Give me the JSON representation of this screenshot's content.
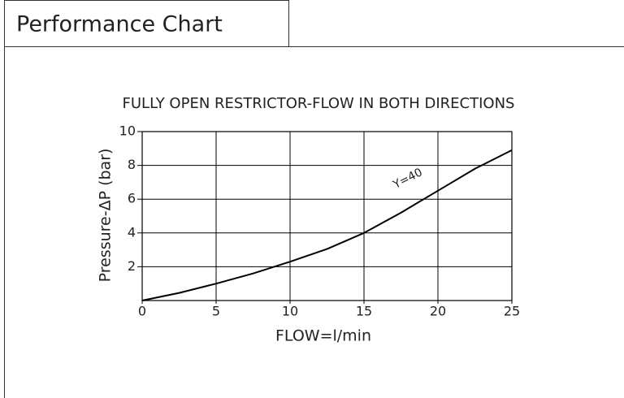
{
  "header": {
    "title": "Performance Chart"
  },
  "chart_data": {
    "type": "line",
    "title": "FULLY OPEN RESTRICTOR-FLOW IN BOTH DIRECTIONS",
    "x_label": "FLOW=l/min",
    "y_label": "Pressure-ΔP (bar)",
    "annotation": "Y=40",
    "x": [
      0,
      2.5,
      5,
      7.5,
      10,
      12.5,
      15,
      17.5,
      20,
      22.5,
      25
    ],
    "series": [
      {
        "name": "Y=40",
        "color": "#000000",
        "values": [
          0,
          0.45,
          1.0,
          1.6,
          2.3,
          3.05,
          4.0,
          5.2,
          6.5,
          7.8,
          8.9
        ]
      }
    ],
    "xlim": [
      0,
      25
    ],
    "xticks": [
      0,
      5,
      10,
      15,
      20,
      25
    ],
    "ylim": [
      0,
      10
    ],
    "yticks": [
      2,
      4,
      6,
      8,
      10
    ],
    "grid": true
  }
}
